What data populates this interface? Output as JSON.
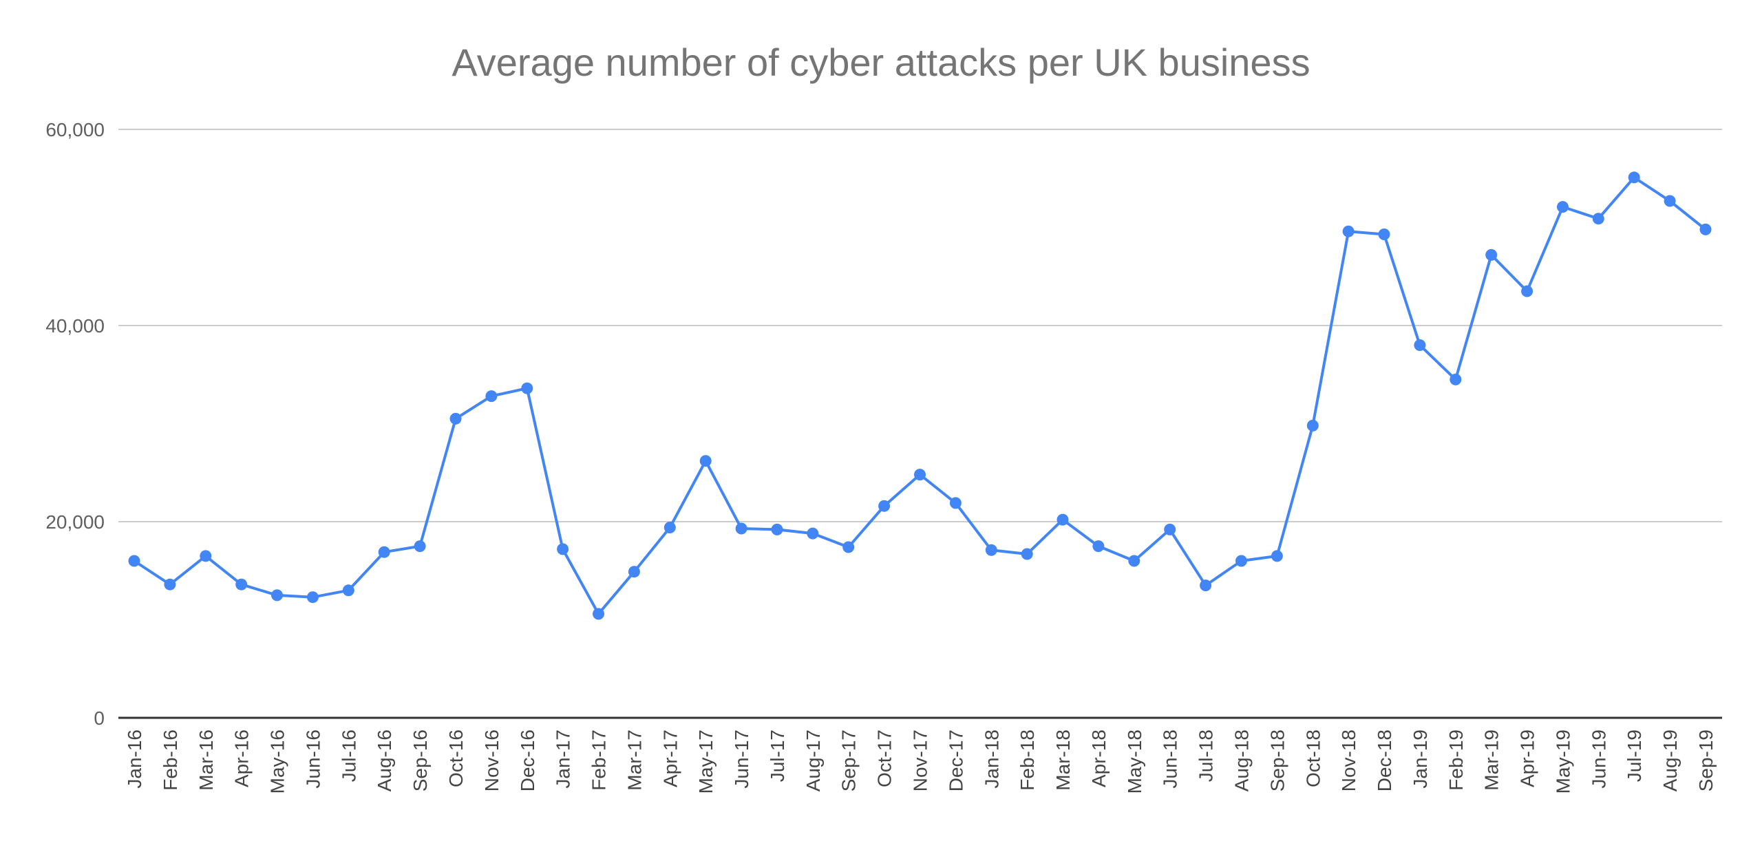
{
  "chart_data": {
    "type": "line",
    "title": "Average number of cyber attacks per UK business",
    "xlabel": "",
    "ylabel": "",
    "ylim": [
      0,
      60000
    ],
    "yticks": [
      0,
      20000,
      40000,
      60000
    ],
    "ytick_labels": [
      "0",
      "20,000",
      "40,000",
      "60,000"
    ],
    "grid": true,
    "legend": "none",
    "categories": [
      "Jan-16",
      "Feb-16",
      "Mar-16",
      "Apr-16",
      "May-16",
      "Jun-16",
      "Jul-16",
      "Aug-16",
      "Sep-16",
      "Oct-16",
      "Nov-16",
      "Dec-16",
      "Jan-17",
      "Feb-17",
      "Mar-17",
      "Apr-17",
      "May-17",
      "Jun-17",
      "Jul-17",
      "Aug-17",
      "Sep-17",
      "Oct-17",
      "Nov-17",
      "Dec-17",
      "Jan-18",
      "Feb-18",
      "Mar-18",
      "Apr-18",
      "May-18",
      "Jun-18",
      "Jul-18",
      "Aug-18",
      "Sep-18",
      "Oct-18",
      "Nov-18",
      "Dec-18",
      "Jan-19",
      "Feb-19",
      "Mar-19",
      "Apr-19",
      "May-19",
      "Jun-19",
      "Jul-19",
      "Aug-19",
      "Sep-19"
    ],
    "series": [
      {
        "color": "#4285f4",
        "values": [
          16000,
          13600,
          16500,
          13600,
          12500,
          12300,
          13000,
          16900,
          17500,
          30500,
          32800,
          33600,
          17200,
          10600,
          14900,
          19400,
          26200,
          19300,
          19200,
          18800,
          17400,
          21600,
          24800,
          21900,
          17100,
          16700,
          20200,
          17500,
          16000,
          19200,
          13500,
          16000,
          16500,
          29800,
          49600,
          49300,
          38000,
          34500,
          47200,
          43500,
          52100,
          50900,
          55100,
          52700,
          49800
        ]
      }
    ]
  }
}
